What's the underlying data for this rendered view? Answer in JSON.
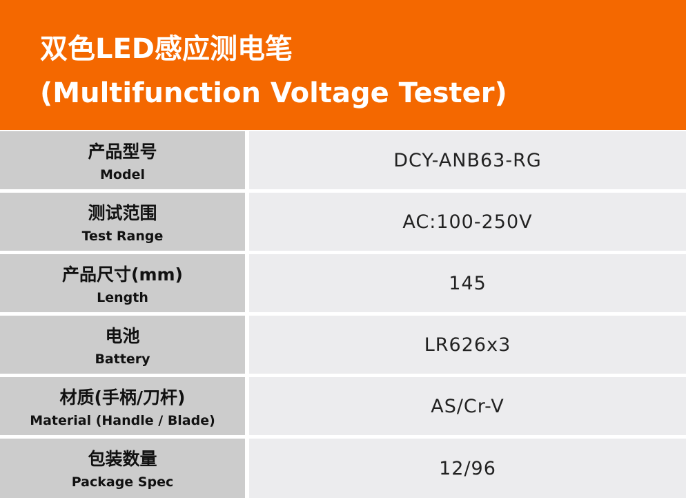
{
  "header": {
    "title_zh": "双色LED感应测电笔",
    "title_en": "(Multifunction Voltage Tester)"
  },
  "colors": {
    "accent": "#f46800",
    "label_bg": "#cccccc",
    "value_bg": "#ececee"
  },
  "rows": [
    {
      "label_zh": "产品型号",
      "label_en": "Model",
      "value": "DCY-ANB63-RG"
    },
    {
      "label_zh": "测试范围",
      "label_en": "Test Range",
      "value": "AC:100-250V"
    },
    {
      "label_zh": "产品尺寸(mm)",
      "label_en": "Length",
      "value": "145"
    },
    {
      "label_zh": "电池",
      "label_en": "Battery",
      "value": "LR626x3"
    },
    {
      "label_zh": "材质(手柄/刀杆)",
      "label_en": "Material (Handle / Blade)",
      "value": "AS/Cr-V"
    },
    {
      "label_zh": "包装数量",
      "label_en": "Package Spec",
      "value": "12/96"
    }
  ]
}
